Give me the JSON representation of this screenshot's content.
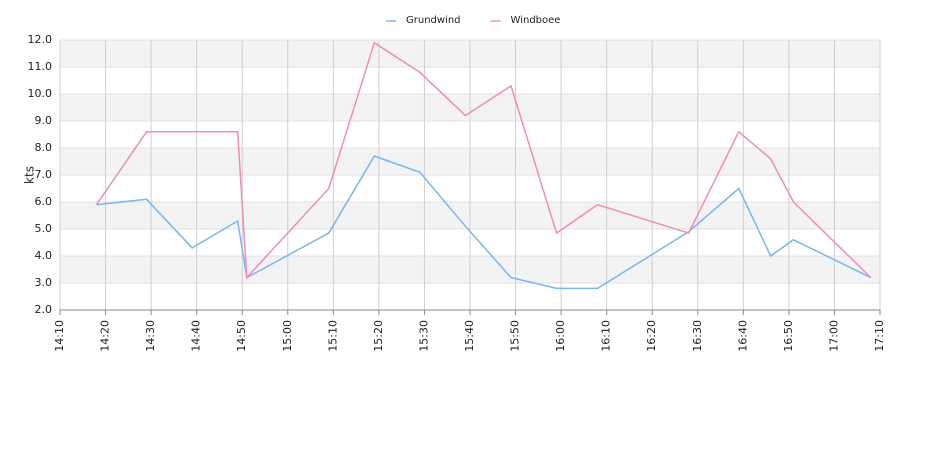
{
  "chart_data": {
    "type": "line",
    "y_label": "kts",
    "x": [
      "14:18",
      "14:29",
      "14:39",
      "14:49",
      "14:51",
      "15:09",
      "15:19",
      "15:29",
      "15:39",
      "15:49",
      "15:59",
      "16:08",
      "16:28",
      "16:39",
      "16:46",
      "16:51",
      "17:08"
    ],
    "series": [
      {
        "name": "Grundwind",
        "color": "#7cb5ec",
        "values": [
          5.9,
          6.1,
          4.3,
          5.3,
          3.2,
          4.85,
          7.7,
          7.1,
          5.1,
          3.2,
          2.8,
          2.8,
          4.9,
          6.5,
          4.0,
          4.6,
          3.2
        ]
      },
      {
        "name": "Windboee",
        "color": "#f08cb8",
        "values": [
          5.9,
          8.6,
          8.6,
          8.6,
          3.2,
          6.5,
          11.9,
          10.8,
          9.2,
          10.3,
          4.85,
          5.9,
          4.85,
          8.6,
          7.6,
          6.0,
          3.2
        ]
      }
    ],
    "xlim": [
      "14:10",
      "17:10"
    ],
    "xticks": [
      "14:10",
      "14:20",
      "14:30",
      "14:40",
      "14:50",
      "15:00",
      "15:10",
      "15:20",
      "15:30",
      "15:40",
      "15:50",
      "16:00",
      "16:10",
      "16:20",
      "16:30",
      "16:40",
      "16:50",
      "17:00",
      "17:10"
    ],
    "ylim": [
      2,
      12
    ],
    "yticks": [
      {
        "value": 2,
        "label": "2.0"
      },
      {
        "value": 3,
        "label": "3.0"
      },
      {
        "value": 4,
        "label": "4.0"
      },
      {
        "value": 5,
        "label": "5.0"
      },
      {
        "value": 6,
        "label": "6.0"
      },
      {
        "value": 7,
        "label": "7.0"
      },
      {
        "value": 8,
        "label": "8.0"
      },
      {
        "value": 9,
        "label": "9.0"
      },
      {
        "value": 10,
        "label": "10.0"
      },
      {
        "value": 11,
        "label": "11.0"
      },
      {
        "value": 12,
        "label": "12.0"
      }
    ],
    "grid": true,
    "legend": "top"
  }
}
